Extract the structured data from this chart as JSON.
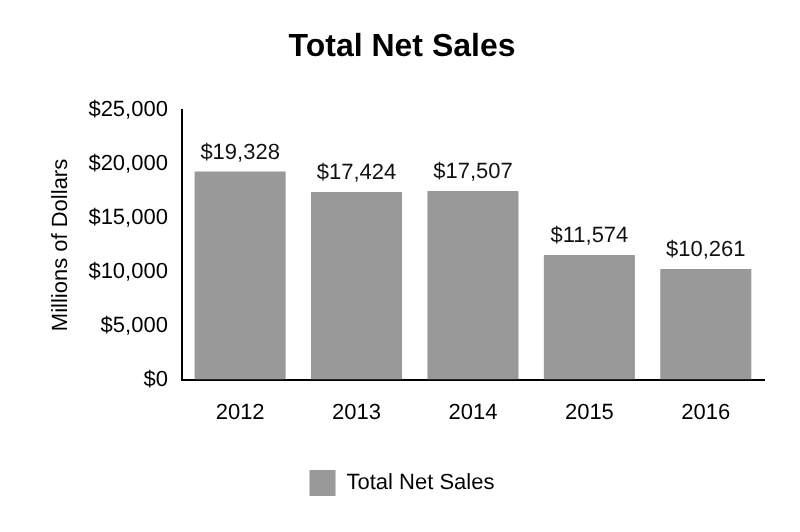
{
  "chart_data": {
    "type": "bar",
    "title": "Total Net Sales",
    "ylabel": "Millions of Dollars",
    "categories": [
      "2012",
      "2013",
      "2014",
      "2015",
      "2016"
    ],
    "series": [
      {
        "name": "Total Net Sales",
        "color": "#999999",
        "values": [
          19328,
          17424,
          17507,
          11574,
          10261
        ],
        "value_labels": [
          "$19,328",
          "$17,424",
          "$17,507",
          "$11,574",
          "$10,261"
        ]
      }
    ],
    "ylim": [
      0,
      25000
    ],
    "yticks": [
      {
        "value": 0,
        "label": "$0"
      },
      {
        "value": 5000,
        "label": "$5,000"
      },
      {
        "value": 10000,
        "label": "$10,000"
      },
      {
        "value": 15000,
        "label": "$15,000"
      },
      {
        "value": 20000,
        "label": "$20,000"
      },
      {
        "value": 25000,
        "label": "$25,000"
      }
    ],
    "grid": false,
    "legend": "bottom"
  }
}
